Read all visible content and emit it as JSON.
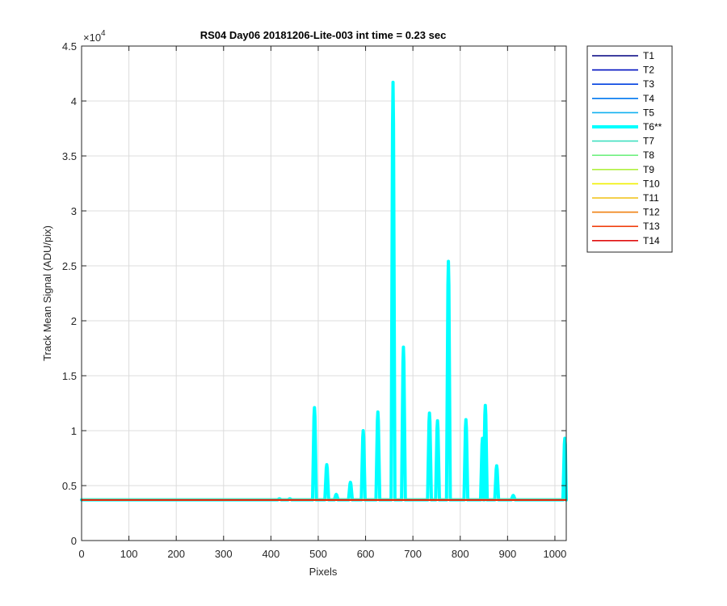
{
  "chart_data": {
    "type": "line",
    "title": "RS04 Day06 20181206-Lite-003 int time = 0.23 sec",
    "xlabel": "Pixels",
    "ylabel": "Track Mean Signal (ADU/pix)",
    "y_exponent_label": "×10",
    "y_exponent_power": "4",
    "xlim": [
      0,
      1024
    ],
    "ylim": [
      0,
      4.5
    ],
    "y_scale_factor": 10000,
    "x_ticks": [
      0,
      100,
      200,
      300,
      400,
      500,
      600,
      700,
      800,
      900,
      1000
    ],
    "x_tick_labels": [
      "0",
      "100",
      "200",
      "300",
      "400",
      "500",
      "600",
      "700",
      "800",
      "900",
      "1000"
    ],
    "y_ticks": [
      0,
      0.5,
      1,
      1.5,
      2,
      2.5,
      3,
      3.5,
      4,
      4.5
    ],
    "y_tick_labels": [
      "0",
      "0.5",
      "1",
      "1.5",
      "2",
      "2.5",
      "3",
      "3.5",
      "4",
      "4.5"
    ],
    "grid": true,
    "legend_placement": "outside-top-right",
    "baseline_value": 0.37,
    "series": [
      {
        "name": "T1",
        "color": "#000080",
        "highlight": false
      },
      {
        "name": "T2",
        "color": "#0010C0",
        "highlight": false
      },
      {
        "name": "T3",
        "color": "#0040E0",
        "highlight": false
      },
      {
        "name": "T4",
        "color": "#0078F0",
        "highlight": false
      },
      {
        "name": "T5",
        "color": "#10B0F0",
        "highlight": false
      },
      {
        "name": "T6**",
        "color": "#00FFFF",
        "highlight": true,
        "peaks": [
          {
            "x": 418,
            "y": 0.38
          },
          {
            "x": 440,
            "y": 0.38
          },
          {
            "x": 492,
            "y": 1.21
          },
          {
            "x": 518,
            "y": 0.69
          },
          {
            "x": 538,
            "y": 0.42
          },
          {
            "x": 568,
            "y": 0.53
          },
          {
            "x": 595,
            "y": 1.0
          },
          {
            "x": 626,
            "y": 1.17
          },
          {
            "x": 658,
            "y": 4.17
          },
          {
            "x": 680,
            "y": 1.76
          },
          {
            "x": 735,
            "y": 1.16
          },
          {
            "x": 752,
            "y": 1.09
          },
          {
            "x": 775,
            "y": 2.54
          },
          {
            "x": 812,
            "y": 1.1
          },
          {
            "x": 847,
            "y": 0.93
          },
          {
            "x": 853,
            "y": 1.23
          },
          {
            "x": 877,
            "y": 0.68
          },
          {
            "x": 912,
            "y": 0.41
          },
          {
            "x": 1021,
            "y": 0.93
          }
        ]
      },
      {
        "name": "T7",
        "color": "#40E0C0",
        "highlight": false
      },
      {
        "name": "T8",
        "color": "#70F080",
        "highlight": false
      },
      {
        "name": "T9",
        "color": "#B0F040",
        "highlight": false
      },
      {
        "name": "T10",
        "color": "#F0F000",
        "highlight": false
      },
      {
        "name": "T11",
        "color": "#F0C010",
        "highlight": false
      },
      {
        "name": "T12",
        "color": "#F08010",
        "highlight": false
      },
      {
        "name": "T13",
        "color": "#F04010",
        "highlight": false
      },
      {
        "name": "T14",
        "color": "#E01010",
        "highlight": false
      }
    ]
  }
}
